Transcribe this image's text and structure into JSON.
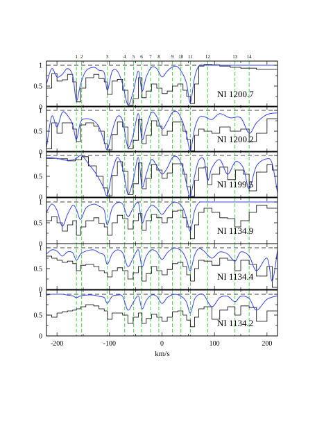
{
  "chart_data": {
    "type": "line",
    "xlabel": "km/s",
    "xlim": [
      -220,
      220
    ],
    "x_ticks": [
      -200,
      -100,
      0,
      100,
      200
    ],
    "ylim": [
      0,
      1.1
    ],
    "y_ticks": [
      "0",
      "0.5",
      "1"
    ],
    "continuum_level": 1.0,
    "component_markers": [
      {
        "label": "1",
        "v": -163
      },
      {
        "label": "2",
        "v": -153
      },
      {
        "label": "3",
        "v": -104
      },
      {
        "label": "4",
        "v": -71
      },
      {
        "label": "5",
        "v": -54
      },
      {
        "label": "6",
        "v": -39
      },
      {
        "label": "7",
        "v": -22
      },
      {
        "label": "8",
        "v": -6
      },
      {
        "label": "9",
        "v": 20
      },
      {
        "label": "10",
        "v": 36
      },
      {
        "label": "11",
        "v": 54
      },
      {
        "label": "12",
        "v": 87
      },
      {
        "label": "13",
        "v": 139
      },
      {
        "label": "14",
        "v": 166
      }
    ],
    "colors": {
      "model": "#3344ee",
      "data": "#000000",
      "markers": "#33cc33",
      "continuum": "#000000"
    },
    "panels": [
      {
        "label": "NI  1200.7",
        "model": {
          "x": [
            -220,
            -210,
            -200,
            -190,
            -180,
            -170,
            -163,
            -155,
            -145,
            -130,
            -120,
            -110,
            -104,
            -95,
            -85,
            -75,
            -65,
            -55,
            -45,
            -38,
            -30,
            -20,
            -10,
            0,
            10,
            20,
            30,
            40,
            47,
            54,
            62,
            70,
            80,
            95,
            110,
            130,
            150,
            180,
            220
          ],
          "y": [
            0.55,
            0.92,
            0.72,
            0.78,
            0.92,
            0.75,
            0.15,
            0.55,
            0.86,
            0.95,
            0.88,
            0.82,
            0.4,
            0.85,
            0.86,
            0.55,
            0.05,
            0.35,
            0.86,
            0.38,
            0.72,
            0.95,
            0.92,
            0.72,
            0.86,
            0.96,
            0.96,
            0.78,
            0.55,
            0.1,
            0.7,
            0.98,
            1.0,
            1.0,
            1.0,
            1.0,
            1.0,
            1.0,
            1.0
          ]
        },
        "data": {
          "x": [
            -220,
            -210,
            -200,
            -190,
            -180,
            -170,
            -163,
            -155,
            -145,
            -130,
            -120,
            -110,
            -104,
            -95,
            -85,
            -75,
            -65,
            -55,
            -45,
            -38,
            -30,
            -20,
            -10,
            0,
            10,
            20,
            30,
            40,
            47,
            54,
            62,
            70,
            80,
            95,
            110,
            130,
            150,
            180,
            220
          ],
          "y": [
            0.45,
            0.8,
            0.62,
            0.65,
            0.78,
            0.6,
            0.12,
            0.45,
            0.7,
            0.78,
            0.68,
            0.6,
            0.3,
            0.62,
            0.66,
            0.4,
            0.04,
            0.2,
            0.7,
            0.22,
            0.38,
            0.55,
            0.45,
            0.32,
            0.38,
            0.5,
            0.55,
            0.4,
            0.25,
            0.08,
            0.55,
            0.98,
            1.02,
            1.01,
            0.98,
            0.95,
            0.93,
            0.9,
            0.92
          ]
        }
      },
      {
        "label": "NI  1200.2",
        "model": {
          "x": [
            -220,
            -210,
            -200,
            -190,
            -180,
            -170,
            -163,
            -155,
            -145,
            -130,
            -120,
            -110,
            -104,
            -95,
            -85,
            -75,
            -65,
            -55,
            -45,
            -38,
            -30,
            -20,
            -10,
            0,
            10,
            20,
            30,
            40,
            47,
            54,
            62,
            70,
            80,
            95,
            110,
            130,
            150,
            166,
            180,
            200,
            220
          ],
          "y": [
            0.1,
            0.86,
            0.6,
            0.95,
            0.88,
            0.65,
            0.3,
            0.72,
            0.8,
            0.75,
            0.6,
            0.25,
            0.06,
            0.5,
            0.85,
            0.75,
            0.12,
            0.4,
            0.92,
            0.3,
            0.6,
            0.95,
            0.85,
            0.55,
            0.72,
            0.95,
            0.95,
            0.7,
            0.4,
            0.04,
            0.55,
            0.82,
            0.85,
            0.78,
            0.92,
            0.82,
            0.82,
            0.45,
            0.7,
            0.9,
            0.94
          ]
        },
        "data": {
          "x": [
            -220,
            -210,
            -200,
            -190,
            -180,
            -170,
            -163,
            -155,
            -145,
            -130,
            -120,
            -110,
            -104,
            -95,
            -85,
            -75,
            -65,
            -55,
            -45,
            -38,
            -30,
            -20,
            -10,
            0,
            10,
            20,
            30,
            40,
            47,
            54,
            62,
            70,
            80,
            95,
            110,
            130,
            150,
            166,
            180,
            200,
            220
          ],
          "y": [
            0.08,
            0.7,
            0.45,
            0.7,
            0.7,
            0.55,
            0.25,
            0.65,
            0.7,
            0.62,
            0.5,
            0.2,
            0.05,
            0.42,
            0.72,
            0.6,
            0.08,
            0.28,
            0.78,
            0.2,
            0.4,
            0.75,
            0.62,
            0.4,
            0.5,
            0.72,
            0.72,
            0.5,
            0.3,
            0.03,
            0.4,
            0.55,
            0.5,
            0.45,
            0.6,
            0.5,
            0.55,
            0.25,
            0.45,
            0.8,
            0.92
          ]
        }
      },
      {
        "label": "NI  1199.5",
        "model": {
          "x": [
            -220,
            -200,
            -180,
            -165,
            -153,
            -140,
            -125,
            -112,
            -104,
            -95,
            -85,
            -75,
            -65,
            -55,
            -45,
            -38,
            -30,
            -20,
            -10,
            0,
            10,
            20,
            30,
            40,
            47,
            54,
            62,
            70,
            80,
            87,
            95,
            110,
            125,
            140,
            155,
            166,
            180,
            200,
            210,
            220
          ],
          "y": [
            0.95,
            0.93,
            0.88,
            0.92,
            1.0,
            0.8,
            0.55,
            0.25,
            0.04,
            0.6,
            0.95,
            0.7,
            0.08,
            0.4,
            0.95,
            0.25,
            0.55,
            0.9,
            0.75,
            0.55,
            0.7,
            0.95,
            0.95,
            0.7,
            0.3,
            0.02,
            0.5,
            0.88,
            0.9,
            0.4,
            0.7,
            0.9,
            0.55,
            0.85,
            0.7,
            0.2,
            0.75,
            0.92,
            0.8,
            0.1
          ]
        },
        "data": {
          "x": [
            -220,
            -200,
            -180,
            -165,
            -153,
            -140,
            -125,
            -112,
            -104,
            -95,
            -85,
            -75,
            -65,
            -55,
            -45,
            -38,
            -30,
            -20,
            -10,
            0,
            10,
            20,
            30,
            40,
            47,
            54,
            62,
            70,
            80,
            87,
            95,
            110,
            125,
            140,
            155,
            166,
            180,
            200,
            210,
            220
          ],
          "y": [
            0.93,
            0.92,
            0.87,
            0.9,
            0.97,
            0.75,
            0.5,
            0.22,
            0.03,
            0.52,
            0.85,
            0.62,
            0.06,
            0.32,
            0.82,
            0.2,
            0.45,
            0.78,
            0.65,
            0.45,
            0.58,
            0.8,
            0.8,
            0.55,
            0.25,
            0.02,
            0.4,
            0.7,
            0.72,
            0.3,
            0.55,
            0.72,
            0.42,
            0.65,
            0.55,
            0.15,
            0.6,
            0.78,
            0.65,
            0.08
          ]
        }
      },
      {
        "label": "NI  1134.9",
        "model": {
          "x": [
            -220,
            -210,
            -200,
            -190,
            -180,
            -170,
            -163,
            -155,
            -145,
            -130,
            -120,
            -110,
            -104,
            -95,
            -85,
            -75,
            -65,
            -55,
            -45,
            -38,
            -30,
            -20,
            -10,
            0,
            10,
            20,
            30,
            40,
            47,
            54,
            62,
            70,
            80,
            95,
            110,
            125,
            139,
            150,
            166,
            180,
            200,
            220
          ],
          "y": [
            0.75,
            0.95,
            0.8,
            0.42,
            0.7,
            0.92,
            0.82,
            0.58,
            0.85,
            0.95,
            0.9,
            0.8,
            0.45,
            0.85,
            0.98,
            0.95,
            0.65,
            0.85,
            0.98,
            0.5,
            0.75,
            0.92,
            0.85,
            0.7,
            0.85,
            0.98,
            0.98,
            0.85,
            0.6,
            0.3,
            0.78,
            0.98,
            1.0,
            1.0,
            1.0,
            1.0,
            1.0,
            1.0,
            1.0,
            1.0,
            1.0,
            1.0
          ]
        },
        "data": {
          "x": [
            -220,
            -210,
            -200,
            -190,
            -180,
            -170,
            -163,
            -155,
            -145,
            -130,
            -120,
            -110,
            -104,
            -95,
            -85,
            -75,
            -65,
            -55,
            -45,
            -38,
            -30,
            -20,
            -10,
            0,
            10,
            20,
            30,
            40,
            47,
            54,
            62,
            70,
            80,
            95,
            110,
            125,
            139,
            150,
            166,
            180,
            200,
            220
          ],
          "y": [
            0.55,
            0.65,
            0.5,
            0.3,
            0.45,
            0.55,
            0.2,
            0.4,
            0.55,
            0.62,
            0.48,
            0.4,
            0.2,
            0.5,
            0.68,
            0.6,
            0.35,
            0.55,
            0.72,
            0.32,
            0.55,
            0.7,
            0.62,
            0.5,
            0.62,
            0.78,
            0.8,
            0.62,
            0.4,
            0.12,
            0.45,
            0.75,
            0.85,
            0.75,
            0.62,
            0.6,
            0.4,
            0.55,
            0.75,
            0.92,
            0.85,
            0.7
          ]
        }
      },
      {
        "label": "NI  1134.4",
        "model": {
          "x": [
            -220,
            -210,
            -200,
            -190,
            -180,
            -170,
            -163,
            -155,
            -145,
            -130,
            -120,
            -110,
            -104,
            -95,
            -85,
            -75,
            -65,
            -55,
            -45,
            -38,
            -30,
            -20,
            -10,
            0,
            10,
            20,
            30,
            40,
            47,
            54,
            62,
            70,
            80,
            95,
            110,
            125,
            139,
            150,
            166,
            180,
            200,
            210,
            220
          ],
          "y": [
            0.85,
            0.95,
            0.92,
            0.8,
            0.9,
            0.88,
            0.7,
            0.85,
            0.92,
            0.95,
            0.88,
            0.82,
            0.6,
            0.85,
            0.95,
            0.88,
            0.55,
            0.75,
            0.95,
            0.55,
            0.8,
            0.95,
            0.9,
            0.72,
            0.88,
            0.98,
            0.98,
            0.88,
            0.7,
            0.45,
            0.82,
            0.98,
            0.92,
            0.75,
            0.9,
            0.85,
            0.68,
            0.9,
            0.8,
            0.45,
            0.75,
            0.2,
            0.95
          ]
        },
        "data": {
          "x": [
            -220,
            -210,
            -200,
            -190,
            -180,
            -170,
            -163,
            -155,
            -145,
            -130,
            -120,
            -110,
            -104,
            -95,
            -85,
            -75,
            -65,
            -55,
            -45,
            -38,
            -30,
            -20,
            -10,
            0,
            10,
            20,
            30,
            40,
            47,
            54,
            62,
            70,
            80,
            95,
            110,
            125,
            139,
            150,
            166,
            180,
            200,
            210,
            220
          ],
          "y": [
            0.8,
            0.75,
            0.7,
            0.65,
            0.68,
            0.62,
            0.45,
            0.58,
            0.6,
            0.55,
            0.45,
            0.4,
            0.3,
            0.45,
            0.52,
            0.45,
            0.25,
            0.4,
            0.55,
            0.2,
            0.38,
            0.55,
            0.45,
            0.35,
            0.48,
            0.62,
            0.65,
            0.55,
            0.35,
            0.2,
            0.5,
            0.7,
            0.68,
            0.58,
            0.75,
            0.7,
            0.45,
            0.7,
            0.6,
            0.32,
            0.55,
            0.05,
            0.85
          ]
        }
      },
      {
        "label": "NI  1134.2",
        "model": {
          "x": [
            -220,
            -210,
            -200,
            -190,
            -180,
            -170,
            -163,
            -155,
            -145,
            -130,
            -120,
            -110,
            -104,
            -95,
            -85,
            -75,
            -65,
            -55,
            -45,
            -38,
            -30,
            -20,
            -10,
            0,
            10,
            20,
            30,
            40,
            47,
            54,
            62,
            70,
            80,
            95,
            110,
            125,
            139,
            150,
            166,
            180,
            200,
            220
          ],
          "y": [
            0.98,
            1.0,
            1.0,
            1.0,
            0.98,
            0.96,
            0.92,
            0.96,
            0.98,
            0.98,
            0.95,
            0.92,
            0.78,
            0.95,
            0.98,
            0.95,
            0.62,
            0.8,
            0.96,
            0.65,
            0.85,
            0.98,
            0.95,
            0.78,
            0.92,
            0.99,
            0.99,
            0.92,
            0.8,
            0.55,
            0.88,
            0.99,
            0.98,
            0.7,
            0.92,
            0.95,
            0.82,
            0.95,
            0.9,
            0.62,
            0.88,
            0.96
          ]
        },
        "data": {
          "x": [
            -220,
            -210,
            -200,
            -190,
            -180,
            -170,
            -163,
            -155,
            -145,
            -130,
            -120,
            -110,
            -104,
            -95,
            -85,
            -75,
            -65,
            -55,
            -45,
            -38,
            -30,
            -20,
            -10,
            0,
            10,
            20,
            30,
            40,
            47,
            54,
            62,
            70,
            80,
            95,
            110,
            125,
            139,
            150,
            166,
            180,
            200,
            220
          ],
          "y": [
            0.5,
            0.45,
            0.55,
            0.58,
            0.6,
            0.62,
            0.65,
            0.7,
            0.75,
            0.72,
            0.65,
            0.6,
            0.4,
            0.55,
            0.55,
            0.5,
            0.3,
            0.45,
            0.55,
            0.3,
            0.42,
            0.52,
            0.45,
            0.35,
            0.45,
            0.58,
            0.6,
            0.5,
            0.38,
            0.22,
            0.45,
            0.65,
            0.7,
            0.4,
            0.62,
            0.7,
            0.5,
            0.72,
            0.68,
            0.35,
            0.6,
            0.8
          ]
        }
      }
    ]
  }
}
